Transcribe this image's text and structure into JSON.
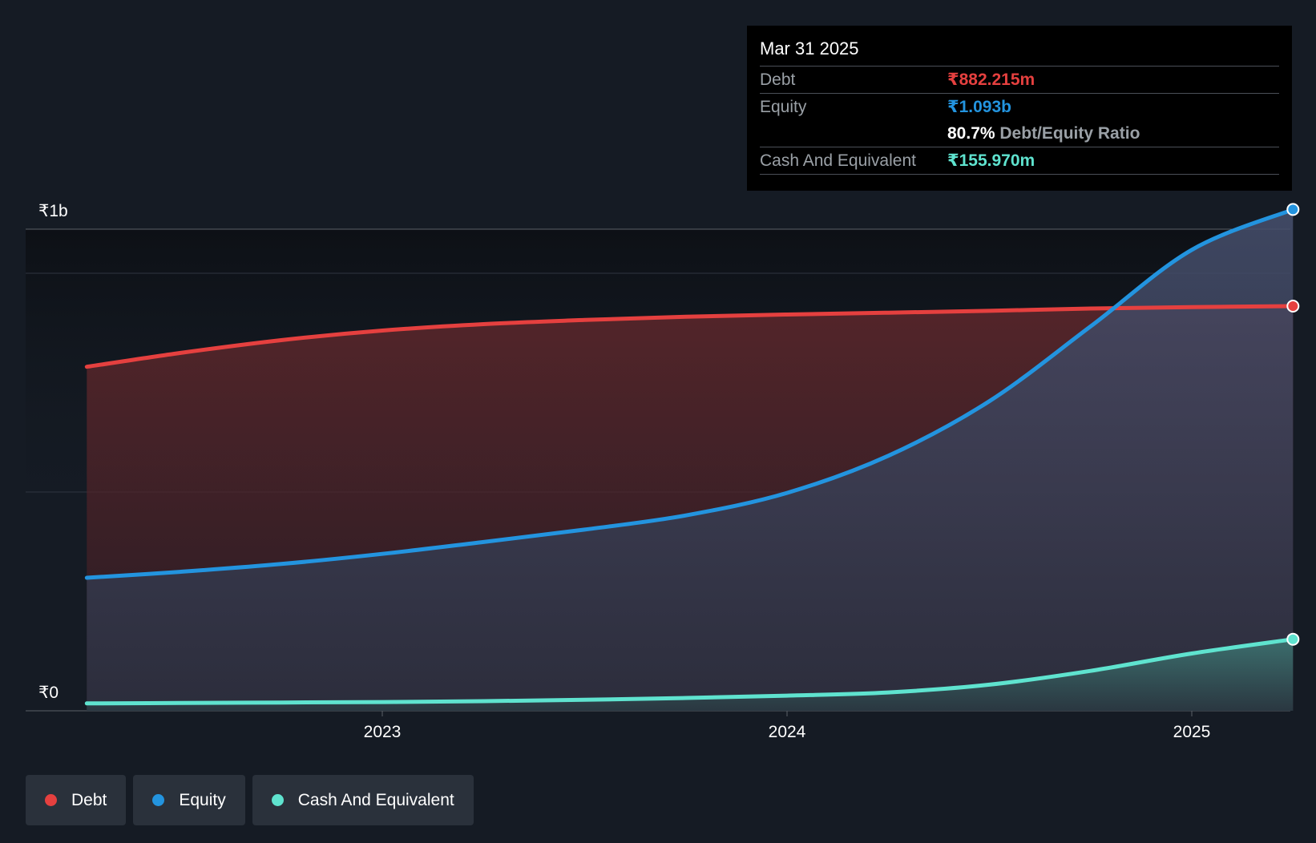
{
  "chart_data": {
    "type": "area",
    "y_axis": {
      "max_label": "₹1b",
      "min_label": "₹0",
      "ylim": [
        0,
        1100
      ]
    },
    "x_ticks": [
      "2023",
      "2024",
      "2025"
    ],
    "x_tick_values": [
      2023.0,
      2024.0,
      2025.0
    ],
    "xlim": [
      2022.27,
      2025.25
    ],
    "series": [
      {
        "name": "Debt",
        "color": "#e5403f",
        "points": [
          [
            2022.27,
            750
          ],
          [
            2022.5,
            780
          ],
          [
            2022.75,
            808
          ],
          [
            2023.0,
            829
          ],
          [
            2023.25,
            843
          ],
          [
            2023.5,
            852
          ],
          [
            2023.75,
            859
          ],
          [
            2024.0,
            864
          ],
          [
            2024.25,
            868
          ],
          [
            2024.5,
            872
          ],
          [
            2024.75,
            877
          ],
          [
            2025.0,
            880
          ],
          [
            2025.25,
            882.2
          ]
        ]
      },
      {
        "name": "Equity",
        "color": "#2394df",
        "points": [
          [
            2022.27,
            290
          ],
          [
            2022.5,
            303
          ],
          [
            2022.75,
            320
          ],
          [
            2023.0,
            342
          ],
          [
            2023.25,
            368
          ],
          [
            2023.5,
            395
          ],
          [
            2023.75,
            426
          ],
          [
            2024.0,
            475
          ],
          [
            2024.25,
            556
          ],
          [
            2024.5,
            675
          ],
          [
            2024.75,
            838
          ],
          [
            2025.0,
            1005
          ],
          [
            2025.25,
            1093
          ]
        ]
      },
      {
        "name": "Cash And Equivalent",
        "color": "#5fe3cf",
        "points": [
          [
            2022.27,
            16
          ],
          [
            2022.5,
            17
          ],
          [
            2022.75,
            18
          ],
          [
            2023.0,
            19
          ],
          [
            2023.25,
            21
          ],
          [
            2023.5,
            24
          ],
          [
            2023.75,
            28
          ],
          [
            2024.0,
            33
          ],
          [
            2024.25,
            40
          ],
          [
            2024.5,
            57
          ],
          [
            2024.75,
            87
          ],
          [
            2025.0,
            125
          ],
          [
            2025.25,
            156
          ]
        ]
      }
    ]
  },
  "tooltip": {
    "date": "Mar 31 2025",
    "debt_label": "Debt",
    "debt_value": "₹882.215m",
    "equity_label": "Equity",
    "equity_value": "₹1.093b",
    "ratio_value": "80.7%",
    "ratio_label": "Debt/Equity Ratio",
    "cash_label": "Cash And Equivalent",
    "cash_value": "₹155.970m"
  },
  "legend": [
    {
      "label": "Debt",
      "color": "#e5403f"
    },
    {
      "label": "Equity",
      "color": "#2394df"
    },
    {
      "label": "Cash And Equivalent",
      "color": "#5fe3cf"
    }
  ],
  "colors": {
    "background": "#151b24",
    "debt": "#e5403f",
    "equity": "#2394df",
    "cash": "#5fe3cf"
  }
}
